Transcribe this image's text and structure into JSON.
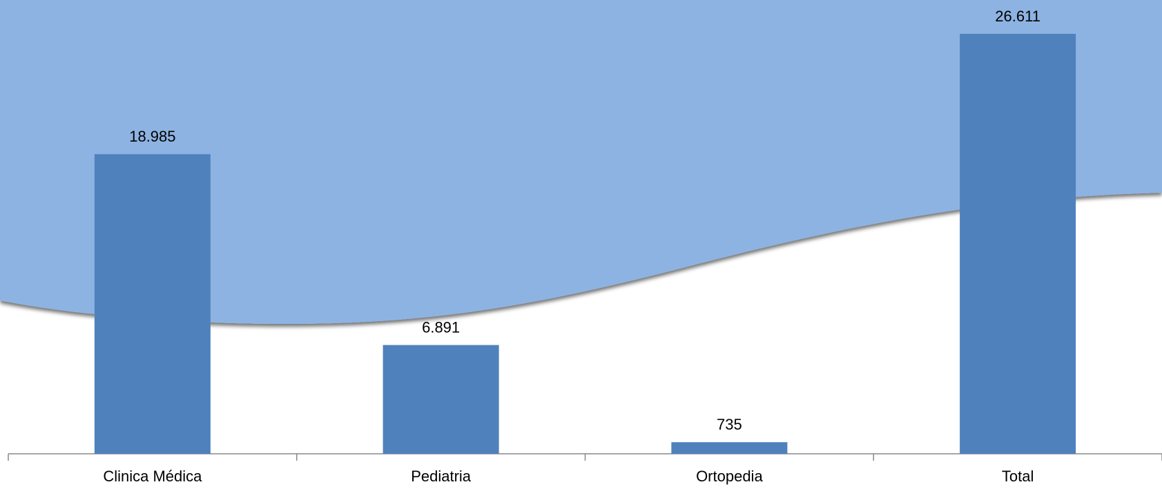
{
  "chart_data": {
    "type": "bar",
    "categories": [
      "Clinica Médica",
      "Pediatria",
      "Ortopedia",
      "Total"
    ],
    "values": [
      18985,
      6891,
      735,
      26611
    ],
    "value_labels": [
      "18.985",
      "6.891",
      "735",
      "26.611"
    ],
    "color": "#4f81bd"
  }
}
